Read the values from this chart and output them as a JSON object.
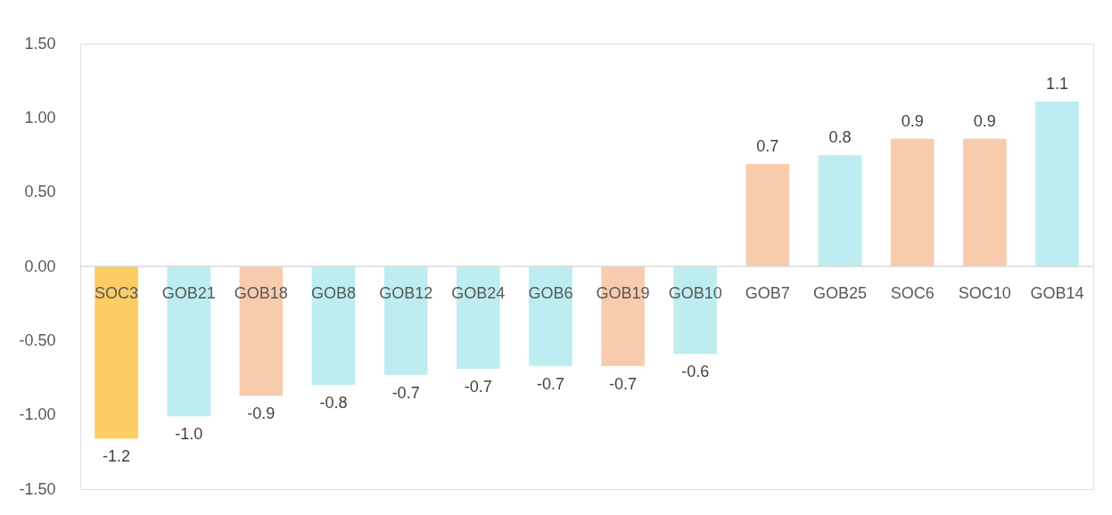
{
  "chart_data": {
    "type": "bar",
    "categories": [
      "SOC3",
      "GOB21",
      "GOB18",
      "GOB8",
      "GOB12",
      "GOB24",
      "GOB6",
      "GOB19",
      "GOB10",
      "GOB7",
      "GOB25",
      "SOC6",
      "SOC10",
      "GOB14"
    ],
    "values": [
      -1.16,
      -1.01,
      -0.87,
      -0.8,
      -0.73,
      -0.69,
      -0.67,
      -0.67,
      -0.59,
      0.69,
      0.75,
      0.86,
      0.86,
      1.11
    ],
    "colors": [
      "#fbcd62",
      "#bdedf0",
      "#f8cbad",
      "#bdedf0",
      "#bdedf0",
      "#bdedf0",
      "#bdedf0",
      "#f8cbad",
      "#bdedf0",
      "#f8cbad",
      "#bdedf0",
      "#f8cbad",
      "#f8cbad",
      "#bdedf0"
    ],
    "value_labels": [
      "-1.2",
      "-1.0",
      "-0.9",
      "-0.8",
      "-0.7",
      "-0.7",
      "-0.7",
      "-0.7",
      "-0.6",
      "0.7",
      "0.8",
      "0.9",
      "0.9",
      "1.1"
    ],
    "ylim": [
      -1.5,
      1.5
    ],
    "yticks": [
      {
        "value": -1.5,
        "label": "-1.50"
      },
      {
        "value": -1.0,
        "label": "-1.00"
      },
      {
        "value": -0.5,
        "label": "-0.50"
      },
      {
        "value": 0,
        "label": "0.00"
      },
      {
        "value": 0.5,
        "label": "0.50"
      },
      {
        "value": 1.0,
        "label": "1.00"
      },
      {
        "value": 1.5,
        "label": "1.50"
      }
    ],
    "grid": false
  }
}
